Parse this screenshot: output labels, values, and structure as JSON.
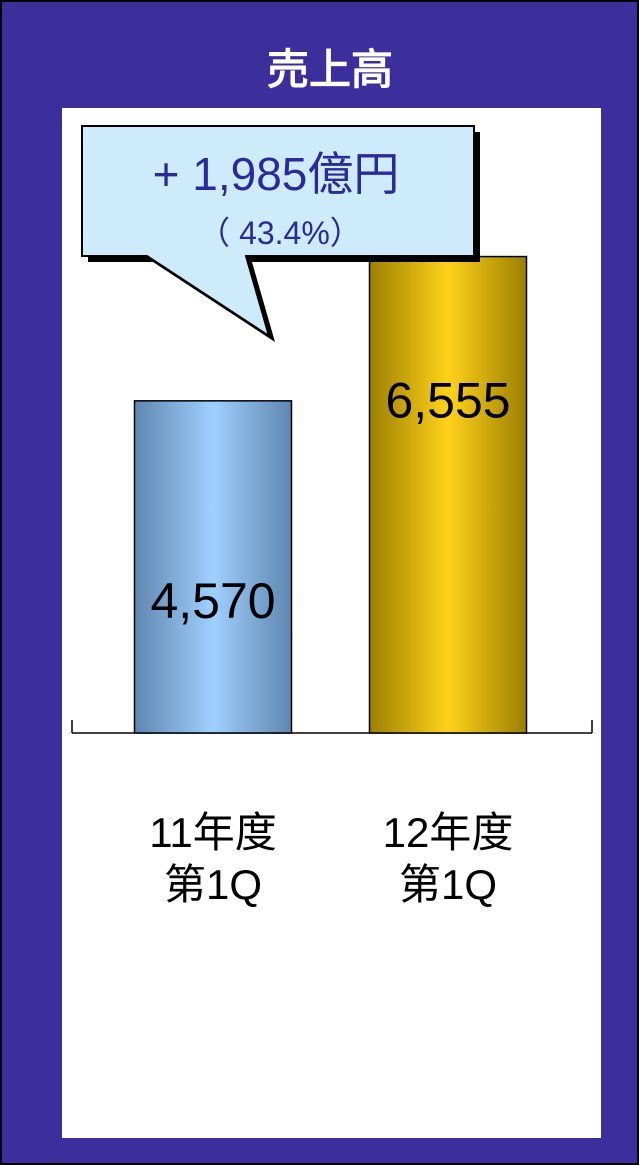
{
  "colors": {
    "frame_bg": "#3c2f9b",
    "panel_bg": "#ffffff",
    "callout_fill": "#cdebfa",
    "callout_text": "#2a2a9a",
    "bar1_light": "#9fd0ff",
    "bar1_dark": "#5f86b0",
    "bar2_light": "#ffd21a",
    "bar2_dark": "#9c7f00"
  },
  "callout": {
    "main": "+ 1,985億円",
    "sub": "（ 43.4%）"
  },
  "chart_data": {
    "type": "bar",
    "title": "売上高",
    "categories": [
      "11年度\n第1Q",
      "12年度\n第1Q"
    ],
    "category_lines": [
      [
        "11年度",
        "第1Q"
      ],
      [
        "12年度",
        "第1Q"
      ]
    ],
    "values": [
      4570,
      6555
    ],
    "value_labels": [
      "4,570",
      "6,555"
    ],
    "xlabel": "",
    "ylabel": "",
    "ylim": [
      0,
      8200
    ],
    "grid": false,
    "legend": "none"
  }
}
